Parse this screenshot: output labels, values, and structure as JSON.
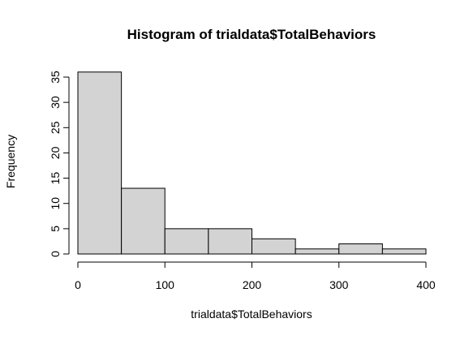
{
  "chart_data": {
    "type": "bar",
    "subtype": "histogram",
    "title": "Histogram of trialdata$TotalBehaviors",
    "xlabel": "trialdata$TotalBehaviors",
    "ylabel": "Frequency",
    "bins": [
      {
        "start": 0,
        "end": 50,
        "count": 36
      },
      {
        "start": 50,
        "end": 100,
        "count": 13
      },
      {
        "start": 100,
        "end": 150,
        "count": 5
      },
      {
        "start": 150,
        "end": 200,
        "count": 5
      },
      {
        "start": 200,
        "end": 250,
        "count": 3
      },
      {
        "start": 250,
        "end": 300,
        "count": 1
      },
      {
        "start": 300,
        "end": 350,
        "count": 2
      },
      {
        "start": 350,
        "end": 400,
        "count": 1
      }
    ],
    "xlim": [
      0,
      400
    ],
    "ylim": [
      0,
      35
    ],
    "xticks": [
      "0",
      "100",
      "200",
      "300",
      "400"
    ],
    "yticks": [
      "0",
      "5",
      "10",
      "15",
      "20",
      "25",
      "30",
      "35"
    ],
    "grid": false,
    "bar_color": "#d3d3d3",
    "edge_color": "#000000"
  }
}
